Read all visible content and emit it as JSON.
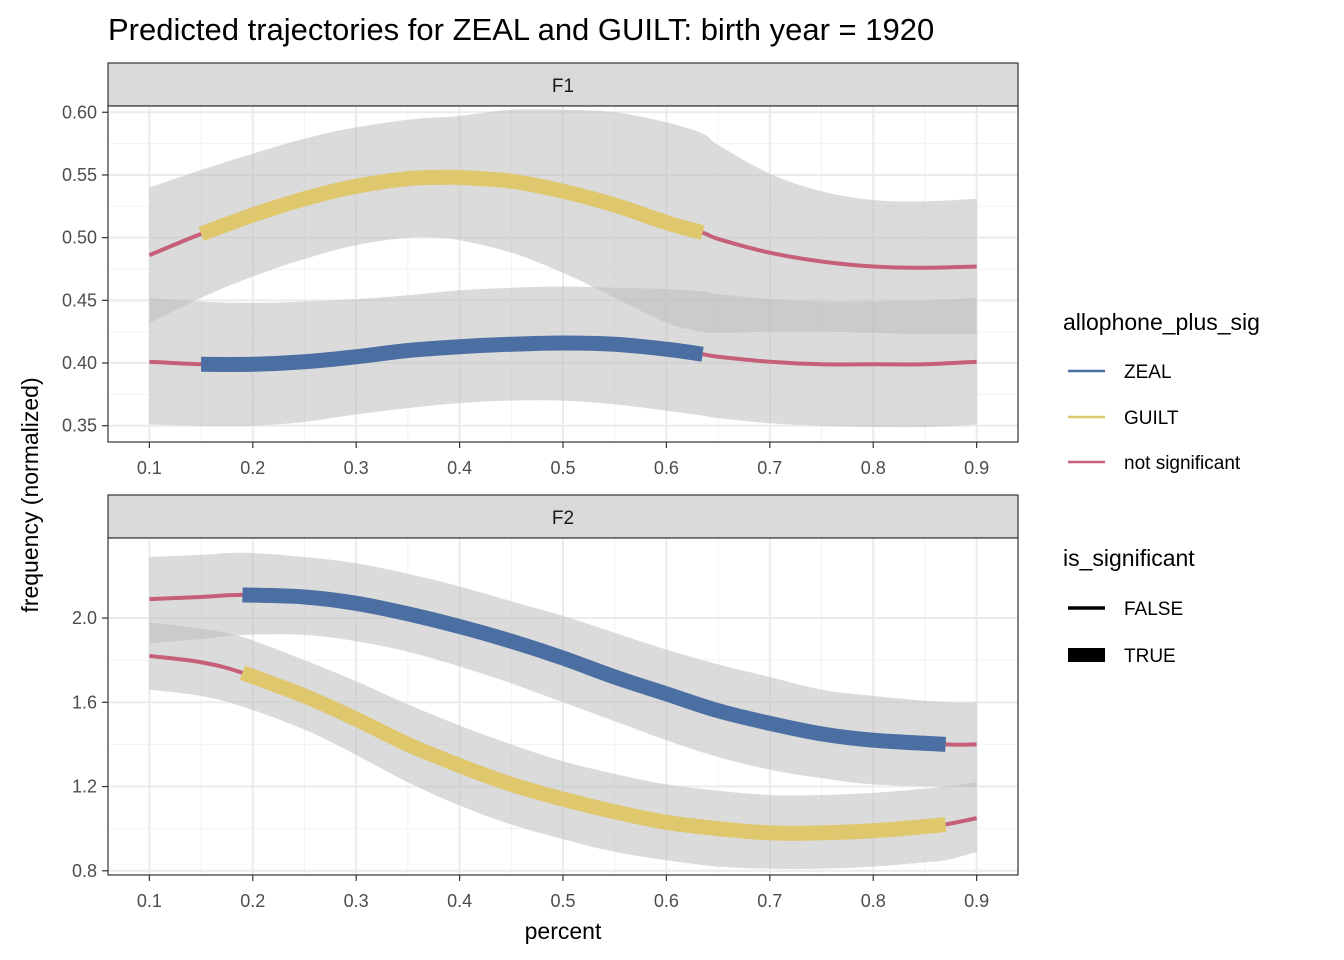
{
  "chart_data": {
    "type": "line",
    "title": "Predicted trajectories for ZEAL and GUILT: birth year = 1920",
    "xlabel": "percent",
    "ylabel": "frequency (normalized)",
    "x_ticks": [
      "0.1",
      "0.2",
      "0.3",
      "0.4",
      "0.5",
      "0.6",
      "0.7",
      "0.8",
      "0.9"
    ],
    "xlim": [
      0.06,
      0.94
    ],
    "panels": [
      {
        "strip": "F1",
        "ylim": [
          0.337,
          0.605
        ],
        "y_ticks": [
          "0.35",
          "0.40",
          "0.45",
          "0.50",
          "0.55",
          "0.60"
        ],
        "y_tick_values": [
          0.35,
          0.4,
          0.45,
          0.5,
          0.55,
          0.6
        ],
        "series": [
          {
            "name": "GUILT",
            "x": [
              0.1,
              0.15,
              0.2,
              0.25,
              0.3,
              0.35,
              0.38,
              0.4,
              0.45,
              0.5,
              0.55,
              0.6,
              0.635,
              0.65,
              0.7,
              0.75,
              0.8,
              0.85,
              0.9
            ],
            "y": [
              0.486,
              0.503,
              0.518,
              0.531,
              0.541,
              0.547,
              0.548,
              0.548,
              0.545,
              0.537,
              0.526,
              0.512,
              0.504,
              0.499,
              0.488,
              0.481,
              0.477,
              0.476,
              0.477
            ],
            "lower": [
              0.432,
              0.452,
              0.469,
              0.483,
              0.494,
              0.5,
              0.5,
              0.498,
              0.488,
              0.472,
              0.452,
              0.432,
              0.425,
              0.424,
              0.425,
              0.425,
              0.424,
              0.423,
              0.423
            ],
            "upper": [
              0.54,
              0.554,
              0.567,
              0.579,
              0.588,
              0.594,
              0.596,
              0.597,
              0.602,
              0.602,
              0.6,
              0.592,
              0.583,
              0.574,
              0.551,
              0.537,
              0.53,
              0.529,
              0.531
            ],
            "significant_range": [
              0.15,
              0.635
            ]
          },
          {
            "name": "ZEAL",
            "x": [
              0.1,
              0.15,
              0.2,
              0.25,
              0.3,
              0.35,
              0.4,
              0.45,
              0.5,
              0.55,
              0.6,
              0.635,
              0.65,
              0.7,
              0.75,
              0.8,
              0.85,
              0.9
            ],
            "y": [
              0.401,
              0.399,
              0.399,
              0.401,
              0.405,
              0.41,
              0.413,
              0.415,
              0.416,
              0.415,
              0.411,
              0.407,
              0.405,
              0.401,
              0.399,
              0.399,
              0.399,
              0.401
            ],
            "lower": [
              0.351,
              0.35,
              0.35,
              0.353,
              0.359,
              0.364,
              0.368,
              0.37,
              0.37,
              0.367,
              0.362,
              0.358,
              0.356,
              0.352,
              0.35,
              0.349,
              0.349,
              0.351
            ],
            "upper": [
              0.452,
              0.449,
              0.448,
              0.449,
              0.451,
              0.454,
              0.458,
              0.46,
              0.461,
              0.46,
              0.459,
              0.457,
              0.455,
              0.451,
              0.449,
              0.449,
              0.45,
              0.452
            ],
            "significant_range": [
              0.15,
              0.635
            ]
          }
        ]
      },
      {
        "strip": "F2",
        "ylim": [
          0.78,
          2.38
        ],
        "y_ticks": [
          "0.8",
          "1.2",
          "1.6",
          "2.0"
        ],
        "y_tick_values": [
          0.8,
          1.2,
          1.6,
          2.0
        ],
        "series": [
          {
            "name": "ZEAL",
            "x": [
              0.1,
              0.15,
              0.19,
              0.25,
              0.3,
              0.35,
              0.4,
              0.45,
              0.5,
              0.55,
              0.6,
              0.65,
              0.7,
              0.75,
              0.8,
              0.87,
              0.9
            ],
            "y": [
              2.09,
              2.1,
              2.11,
              2.1,
              2.07,
              2.02,
              1.96,
              1.89,
              1.81,
              1.72,
              1.64,
              1.56,
              1.5,
              1.45,
              1.42,
              1.4,
              1.4
            ],
            "lower": [
              1.88,
              1.9,
              1.92,
              1.92,
              1.89,
              1.84,
              1.77,
              1.69,
              1.6,
              1.51,
              1.42,
              1.34,
              1.28,
              1.24,
              1.21,
              1.2,
              1.2
            ],
            "upper": [
              2.29,
              2.3,
              2.31,
              2.29,
              2.26,
              2.21,
              2.15,
              2.08,
              2.01,
              1.93,
              1.85,
              1.78,
              1.72,
              1.66,
              1.63,
              1.6,
              1.6
            ],
            "significant_range": [
              0.19,
              0.87
            ]
          },
          {
            "name": "GUILT",
            "x": [
              0.1,
              0.15,
              0.19,
              0.25,
              0.3,
              0.35,
              0.4,
              0.45,
              0.5,
              0.55,
              0.6,
              0.65,
              0.7,
              0.75,
              0.8,
              0.85,
              0.87,
              0.9
            ],
            "y": [
              1.82,
              1.79,
              1.74,
              1.63,
              1.52,
              1.4,
              1.3,
              1.21,
              1.14,
              1.08,
              1.03,
              1.0,
              0.98,
              0.98,
              0.99,
              1.01,
              1.02,
              1.05
            ],
            "lower": [
              1.66,
              1.63,
              1.58,
              1.47,
              1.35,
              1.22,
              1.11,
              1.02,
              0.95,
              0.89,
              0.85,
              0.82,
              0.81,
              0.81,
              0.82,
              0.84,
              0.85,
              0.89
            ],
            "upper": [
              1.98,
              1.95,
              1.91,
              1.8,
              1.7,
              1.59,
              1.49,
              1.4,
              1.32,
              1.26,
              1.21,
              1.18,
              1.16,
              1.16,
              1.17,
              1.19,
              1.2,
              1.22
            ],
            "significant_range": [
              0.19,
              0.87
            ]
          }
        ]
      }
    ],
    "legend": {
      "placement": "right",
      "colour_title": "allophone_plus_sig",
      "colour_items": [
        {
          "label": "ZEAL",
          "color": "#4c6fa3"
        },
        {
          "label": "GUILT",
          "color": "#dec76d"
        },
        {
          "label": "not significant",
          "color": "#c6607a"
        }
      ],
      "size_title": "is_significant",
      "size_items": [
        {
          "label": "FALSE"
        },
        {
          "label": "TRUE"
        }
      ]
    },
    "colors": {
      "band": "#bdbdbd",
      "strip_background": "#d9d9d9",
      "grid": "#ebebeb"
    }
  }
}
